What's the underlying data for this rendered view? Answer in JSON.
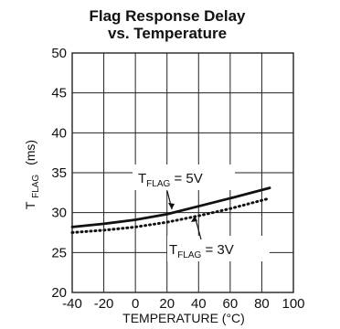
{
  "chart_data": {
    "type": "line",
    "title": [
      "Flag Response Delay",
      "vs. Temperature"
    ],
    "xlabel": "TEMPERATURE (°C)",
    "ylabel": {
      "main": "T",
      "sub": "FLAG",
      "unit": "(ms)"
    },
    "xlim": [
      -40,
      100
    ],
    "ylim": [
      20,
      50
    ],
    "x_ticks": [
      -40,
      -20,
      0,
      20,
      40,
      60,
      80,
      100
    ],
    "y_ticks": [
      20,
      25,
      30,
      35,
      40,
      45,
      50
    ],
    "x_tick_labels": [
      "-40",
      "-20",
      "0",
      "20",
      "40",
      "60",
      "80",
      "100"
    ],
    "y_tick_labels": [
      "20",
      "25",
      "30",
      "35",
      "40",
      "45",
      "50"
    ],
    "grid": true,
    "legend": "none",
    "series": [
      {
        "name": "T FLAG = 5V",
        "line_style": "solid",
        "color": "#111111",
        "x": [
          -40,
          -20,
          0,
          20,
          40,
          60,
          85
        ],
        "y": [
          28.2,
          28.6,
          29.1,
          29.8,
          30.8,
          31.8,
          33.1
        ]
      },
      {
        "name": "T FLAG = 3V",
        "line_style": "dotted",
        "color": "#111111",
        "x": [
          -40,
          -20,
          0,
          20,
          40,
          60,
          85
        ],
        "y": [
          27.5,
          27.8,
          28.2,
          28.8,
          29.6,
          30.5,
          31.8
        ]
      }
    ],
    "annotations": [
      {
        "series_index": 0,
        "prefix": "T",
        "subscript": "FLAG",
        "suffix": " = 5V"
      },
      {
        "series_index": 1,
        "prefix": "T",
        "subscript": "FLAG",
        "suffix": " = 3V"
      }
    ]
  }
}
